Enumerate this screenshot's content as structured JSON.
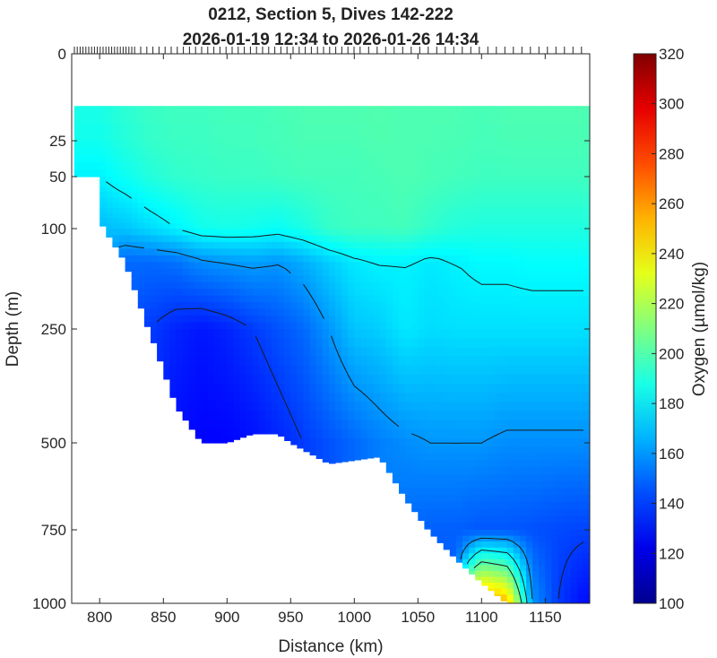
{
  "chart_data": {
    "type": "heatmap",
    "title": [
      "0212, Section 5, Dives 142-222",
      "2026-01-19 12:34 to 2026-01-26 14:34"
    ],
    "xlabel": "Distance (km)",
    "ylabel": "Depth (m)",
    "colorbar_label": "Oxygen (µmol/kg)",
    "x_ticks": [
      800,
      850,
      900,
      950,
      1000,
      1050,
      1100,
      1150
    ],
    "y_ticks": [
      0,
      25,
      50,
      100,
      250,
      500,
      750,
      1000
    ],
    "c_ticks": [
      100,
      120,
      140,
      160,
      180,
      200,
      220,
      240,
      260,
      280,
      300,
      320
    ],
    "xlim": [
      778,
      1185
    ],
    "ylim": [
      0,
      1000
    ],
    "clim": [
      100,
      320
    ],
    "grid": false,
    "colormap": "jet",
    "data_start_depth": 15,
    "x_profiles": [
      800,
      820,
      840,
      860,
      880,
      900,
      920,
      940,
      960,
      980,
      1000,
      1020,
      1040,
      1060,
      1080,
      1100,
      1120,
      1140,
      1160,
      1180
    ],
    "max_depth": [
      90,
      150,
      260,
      420,
      500,
      500,
      480,
      480,
      520,
      560,
      550,
      540,
      660,
      760,
      850,
      930,
      1000,
      1000,
      1000,
      1000
    ],
    "depth_levels": [
      15,
      50,
      100,
      150,
      250,
      500,
      750,
      1000
    ],
    "oxygen": [
      [
        188,
        192,
        195,
        196,
        196,
        197,
        197,
        198,
        199,
        199,
        199,
        200,
        199,
        199,
        199,
        198,
        199,
        199,
        199,
        199
      ],
      [
        180,
        185,
        190,
        193,
        194,
        195,
        195,
        196,
        197,
        197,
        197,
        198,
        199,
        198,
        197,
        196,
        196,
        196,
        196,
        196
      ],
      [
        168,
        170,
        175,
        180,
        186,
        187,
        186,
        184,
        188,
        194,
        196,
        196,
        197,
        193,
        190,
        189,
        189,
        189,
        189,
        189
      ],
      [
        null,
        150,
        150,
        152,
        158,
        160,
        162,
        160,
        165,
        172,
        178,
        180,
        180,
        178,
        180,
        182,
        182,
        183,
        183,
        183
      ],
      [
        null,
        null,
        140,
        135,
        132,
        135,
        140,
        145,
        150,
        160,
        170,
        172,
        178,
        175,
        176,
        176,
        176,
        176,
        176,
        176
      ],
      [
        null,
        null,
        null,
        130,
        128,
        128,
        130,
        135,
        140,
        145,
        150,
        155,
        158,
        160,
        160,
        160,
        158,
        158,
        158,
        158
      ],
      [
        null,
        null,
        null,
        null,
        null,
        null,
        null,
        null,
        null,
        null,
        null,
        null,
        150,
        148,
        148,
        146,
        146,
        145,
        143,
        142
      ],
      [
        null,
        null,
        null,
        null,
        null,
        null,
        null,
        null,
        null,
        null,
        null,
        null,
        null,
        null,
        null,
        270,
        255,
        160,
        140,
        130
      ]
    ],
    "contour_levels": [
      120,
      140,
      160,
      180,
      200
    ]
  }
}
